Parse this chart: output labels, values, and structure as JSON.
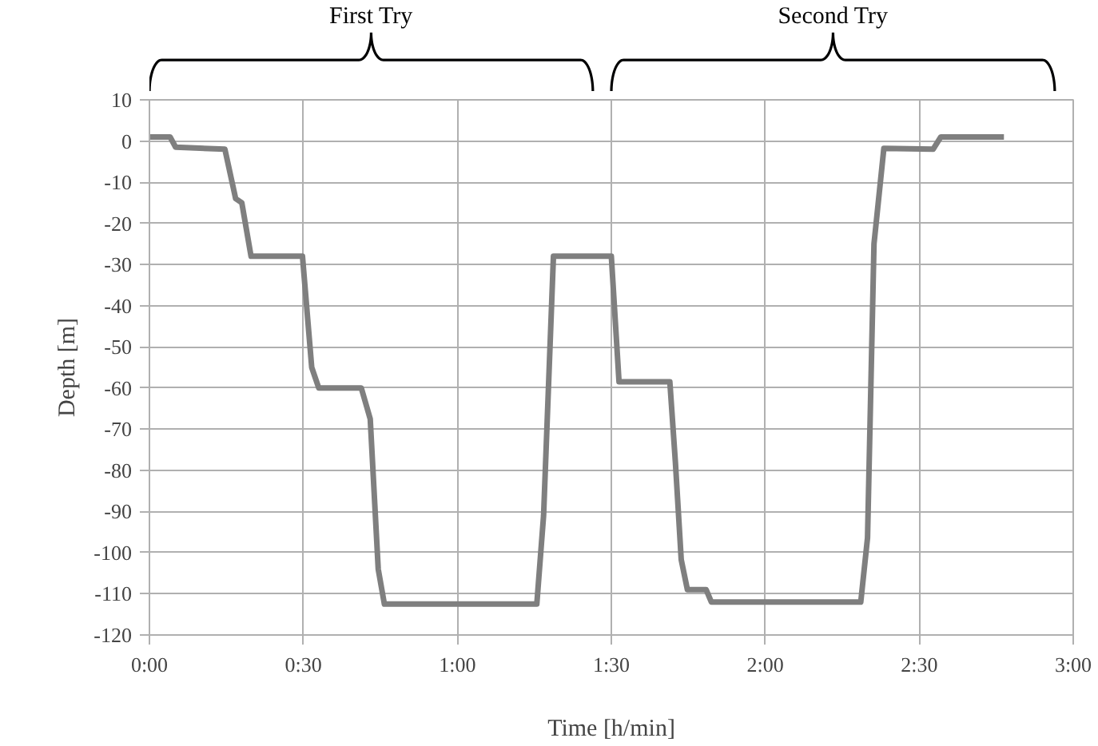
{
  "chart_data": {
    "type": "line",
    "xlabel": "Time [h/min]",
    "ylabel": "Depth [m]",
    "annotations": [
      "First Try",
      "Second Try"
    ],
    "xlim": [
      0,
      3
    ],
    "ylim": [
      -120,
      10
    ],
    "xticks": [
      {
        "value": 0,
        "label": "0:00"
      },
      {
        "value": 0.5,
        "label": "0:30"
      },
      {
        "value": 1,
        "label": "1:00"
      },
      {
        "value": 1.5,
        "label": "1:30"
      },
      {
        "value": 2,
        "label": "2:00"
      },
      {
        "value": 2.5,
        "label": "2:30"
      },
      {
        "value": 3,
        "label": "3:00"
      }
    ],
    "yticks": [
      10,
      0,
      -10,
      -20,
      -30,
      -40,
      -50,
      -60,
      -70,
      -80,
      -90,
      -100,
      -110,
      -120
    ],
    "grid": true,
    "marker": "none",
    "line_style": "solid",
    "series": [
      {
        "color": "#7f7f7f",
        "x": [
          0,
          0.067,
          0.085,
          0.245,
          0.28,
          0.3,
          0.33,
          0.497,
          0.527,
          0.55,
          0.688,
          0.717,
          0.743,
          0.763,
          1.258,
          1.28,
          1.312,
          1.5,
          1.525,
          1.69,
          1.708,
          1.727,
          1.747,
          1.808,
          1.825,
          2.31,
          2.332,
          2.353,
          2.385,
          2.545,
          2.57,
          2.775
        ],
        "values": [
          1,
          1,
          -1.5,
          -2,
          -14,
          -15,
          -28,
          -28,
          -55,
          -60,
          -60,
          -67.5,
          -104,
          -112.5,
          -112.5,
          -91,
          -28,
          -28,
          -58.5,
          -58.5,
          -78,
          -101.7,
          -109,
          -109,
          -112,
          -112,
          -96.4,
          -25,
          -1.8,
          -2,
          1,
          1
        ]
      }
    ]
  }
}
